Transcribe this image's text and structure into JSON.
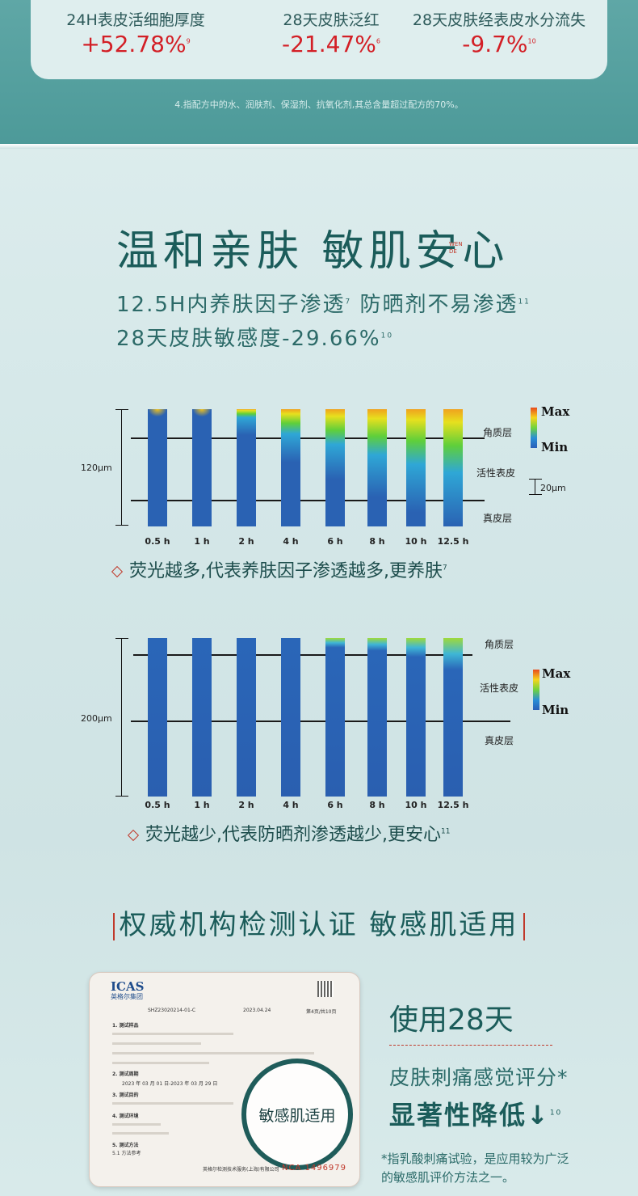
{
  "stats": [
    {
      "label": "24H表皮活细胞厚度",
      "value": "+52.78%",
      "note": "9"
    },
    {
      "label": "28天皮肤泛红",
      "value": "-21.47%",
      "note": "6"
    },
    {
      "label": "28天皮肤经表皮水分流失",
      "value": "-9.7%",
      "note": "10"
    }
  ],
  "footnote": "4.指配方中的水、润肤剂、保湿剂、抗氧化剂,其总含量超过配方的70%。",
  "headline": "温和亲肤 敏肌安心",
  "wende": [
    "WEN",
    "DE"
  ],
  "sub1": {
    "text": "12.5H内养肤因子渗透",
    "note1": "7",
    "text2": " 防晒剂不易渗透",
    "note2": "11"
  },
  "sub2": {
    "text": "28天皮肤敏感度-29.66%",
    "note": "10"
  },
  "chart1": {
    "depth_label": "120μm",
    "scale_max": "Max",
    "scale_min": "Min",
    "scale_bar": "20μm",
    "layers": [
      "角质层",
      "活性表皮",
      "真皮层"
    ],
    "times": [
      "0.5 h",
      "1 h",
      "2 h",
      "4 h",
      "6 h",
      "8 h",
      "10 h",
      "12.5 h"
    ],
    "caption": "荧光越多,代表养肤因子渗透越多,更养肤",
    "caption_note": "7"
  },
  "chart2": {
    "depth_label": "200μm",
    "scale_max": "Max",
    "scale_min": "Min",
    "layers": [
      "角质层",
      "活性表皮",
      "真皮层"
    ],
    "times": [
      "0.5 h",
      "1 h",
      "2 h",
      "4 h",
      "6 h",
      "8 h",
      "10 h",
      "12.5 h"
    ],
    "caption": "荧光越少,代表防晒剂渗透越少,更安心",
    "caption_note": "11"
  },
  "section2_title": "权威机构检测认证 敏感肌适用",
  "cert": {
    "logo": "ICAS",
    "logo_sub": "英格尔集团",
    "badge": "敏感肌适用",
    "number": "NCA 1496979",
    "report_no": "SHZ23020214-01-C",
    "date": "2023.04.24",
    "page": "第4页/共10页",
    "sections": [
      "1. 测试样品",
      "2. 测试周期",
      "3. 测试目的",
      "4. 测试环境",
      "5. 测试方法",
      "5.1 方法参考"
    ],
    "period": "2023 年 03 月 01 日-2023 年 03 月 29 日",
    "footer": "英格尔检测技术服务(上海)有限公司"
  },
  "right": {
    "line1": "使用28天",
    "line2": "皮肤刺痛感觉评分*",
    "line3": "显著性降低↓",
    "line3_note": "10",
    "note": "*指乳酸刺痛试验，是应用较为广泛的敏感肌评价方法之一。"
  },
  "colors": {
    "teal_dark": "#1b5c5a",
    "accent_red": "#d31f26",
    "bar_blue": "#2a62b3"
  }
}
